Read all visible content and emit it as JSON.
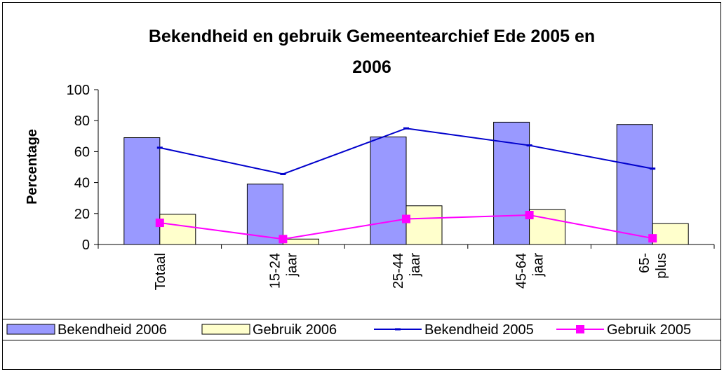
{
  "chart_data": {
    "type": "bar-line",
    "title": [
      "Bekendheid en gebruik Gemeentearchief Ede 2005 en",
      "2006"
    ],
    "y_label": "Percentage",
    "categories": [
      [
        "Totaal"
      ],
      [
        "15-24",
        "jaar"
      ],
      [
        "25-44",
        "jaar"
      ],
      [
        "45-64",
        "jaar"
      ],
      [
        "65-",
        "plus"
      ]
    ],
    "ylim": [
      0,
      100
    ],
    "yticks": [
      0,
      20,
      40,
      60,
      80,
      100
    ],
    "series": [
      {
        "name": "Bekendheid 2006",
        "type": "bar",
        "color": "#9999ff",
        "values": [
          69,
          39,
          69.5,
          79,
          77.5
        ]
      },
      {
        "name": "Gebruik 2006",
        "type": "bar",
        "color": "#ffffcc",
        "values": [
          19.5,
          3.5,
          25,
          22.5,
          13.5
        ]
      },
      {
        "name": "Bekendheid 2005",
        "type": "line",
        "color": "#0000cc",
        "marker": "dash",
        "values": [
          62.5,
          45.5,
          75,
          64,
          49
        ]
      },
      {
        "name": "Gebruik 2005",
        "type": "line",
        "color": "#ff00ff",
        "marker": "square",
        "values": [
          14,
          3.5,
          16.5,
          19,
          4
        ]
      }
    ]
  }
}
